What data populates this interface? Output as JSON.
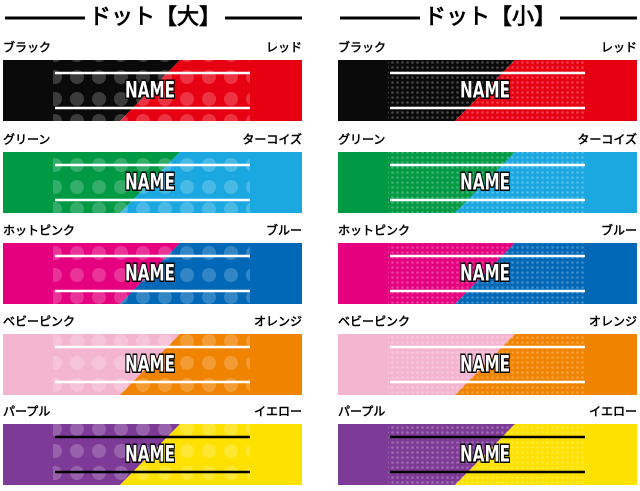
{
  "columns": [
    {
      "title": "ドット【大】",
      "dot_size": "large",
      "rows": [
        {
          "left": "ブラック",
          "right": "レッド",
          "name": "NAME",
          "left_color": "#0a0a0a",
          "right_color": "#e60012",
          "line_color": "#ffffff"
        },
        {
          "left": "グリーン",
          "right": "ターコイズ",
          "name": "NAME",
          "left_color": "#009944",
          "right_color": "#1ba8e0",
          "line_color": "#ffffff"
        },
        {
          "left": "ホットピンク",
          "right": "ブルー",
          "name": "NAME",
          "left_color": "#e4007f",
          "right_color": "#0068b7",
          "line_color": "#ffffff"
        },
        {
          "left": "ベビーピンク",
          "right": "オレンジ",
          "name": "NAME",
          "left_color": "#f4b5d0",
          "right_color": "#f08300",
          "line_color": "#ffffff"
        },
        {
          "left": "パープル",
          "right": "イエロー",
          "name": "NAME",
          "left_color": "#7d3a96",
          "right_color": "#ffe100",
          "line_color": "#000000"
        }
      ]
    },
    {
      "title": "ドット【小】",
      "dot_size": "small",
      "rows": [
        {
          "left": "ブラック",
          "right": "レッド",
          "name": "NAME",
          "left_color": "#0a0a0a",
          "right_color": "#e60012",
          "line_color": "#ffffff"
        },
        {
          "left": "グリーン",
          "right": "ターコイズ",
          "name": "NAME",
          "left_color": "#009944",
          "right_color": "#1ba8e0",
          "line_color": "#ffffff"
        },
        {
          "left": "ホットピンク",
          "right": "ブルー",
          "name": "NAME",
          "left_color": "#e4007f",
          "right_color": "#0068b7",
          "line_color": "#ffffff"
        },
        {
          "left": "ベビーピンク",
          "right": "オレンジ",
          "name": "NAME",
          "left_color": "#f4b5d0",
          "right_color": "#f08300",
          "line_color": "#ffffff"
        },
        {
          "left": "パープル",
          "right": "イエロー",
          "name": "NAME",
          "left_color": "#7d3a96",
          "right_color": "#ffe100",
          "line_color": "#000000"
        }
      ]
    }
  ]
}
